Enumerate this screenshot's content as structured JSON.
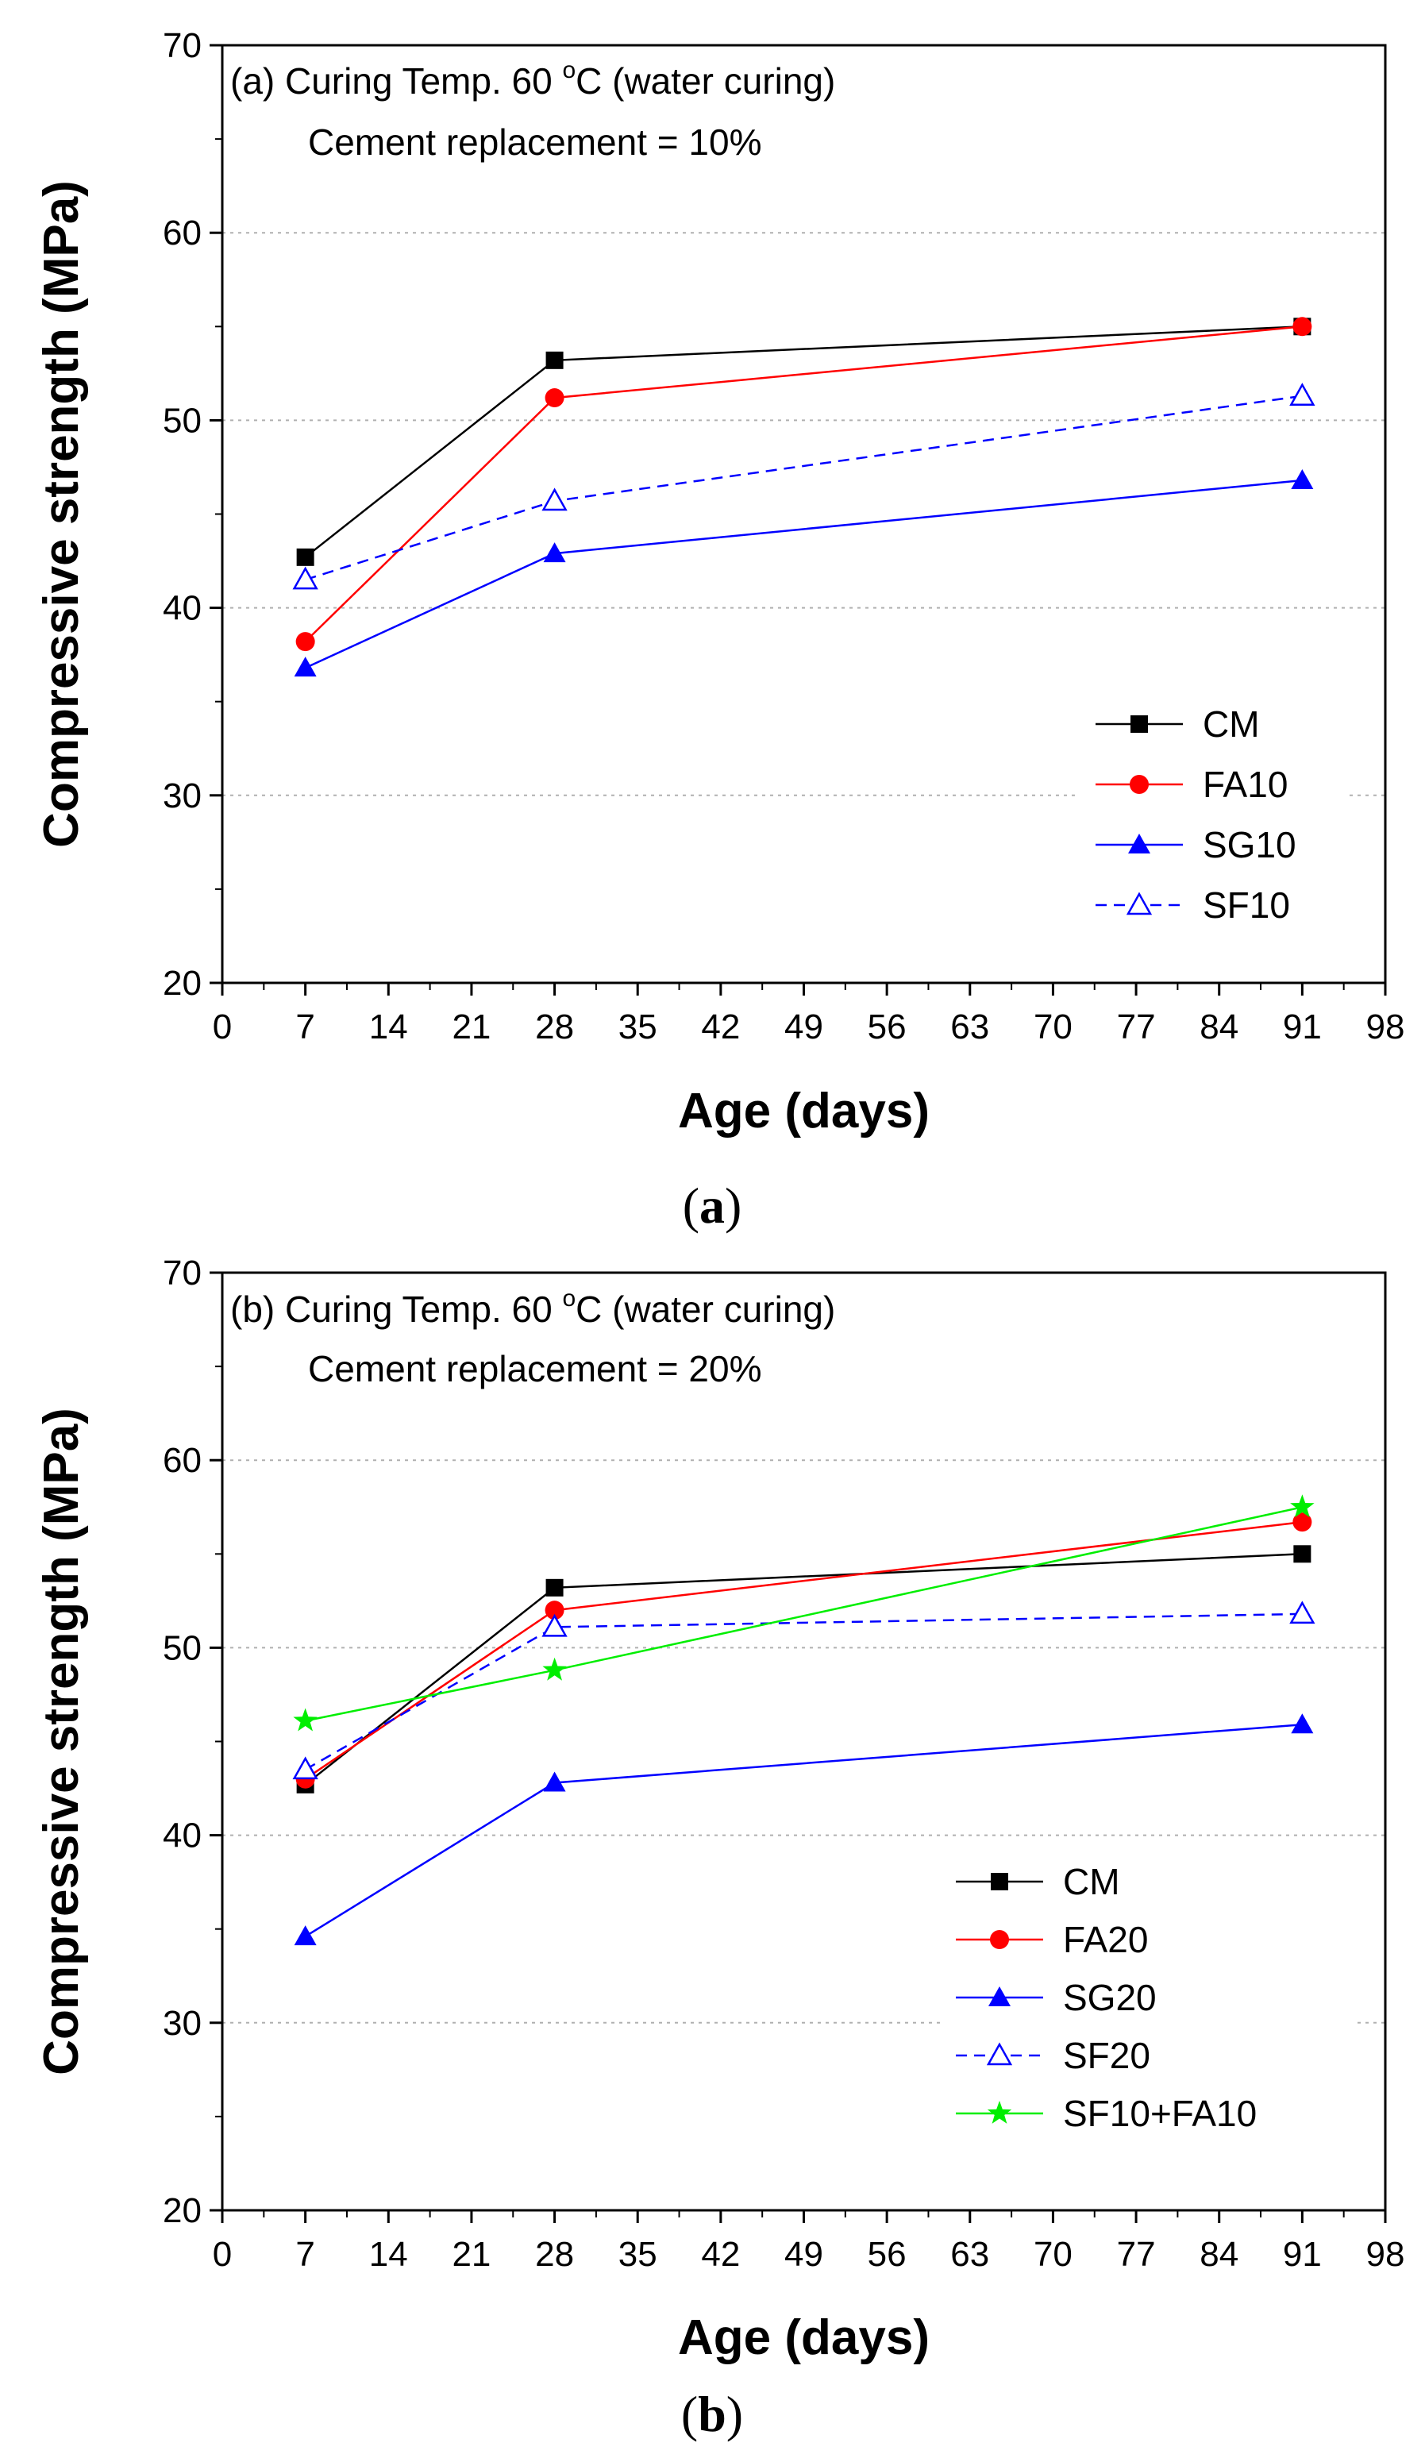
{
  "chart_data": [
    {
      "id": "a",
      "type": "line",
      "panel_label": "a",
      "annotation_prefix": "(a) Curing Temp. 60 ",
      "annotation_degree": "o",
      "annotation_suffix": "C (water curing)",
      "annotation_line2": "Cement replacement = 10%",
      "xlabel": "Age (days)",
      "ylabel": "Compressive strength (MPa)",
      "xlim": [
        0,
        98
      ],
      "ylim": [
        20,
        70
      ],
      "xticks": [
        0,
        7,
        14,
        21,
        28,
        35,
        42,
        49,
        56,
        63,
        70,
        77,
        84,
        91,
        98
      ],
      "yticks": [
        20,
        30,
        40,
        50,
        60,
        70
      ],
      "x": [
        7,
        28,
        91
      ],
      "legend_position": "bottom-right",
      "series": [
        {
          "name": "CM",
          "values": [
            42.7,
            53.2,
            55.0
          ],
          "color": "#000000",
          "marker": "square",
          "dash": "solid"
        },
        {
          "name": "FA10",
          "values": [
            38.2,
            51.2,
            55.0
          ],
          "color": "#ff0000",
          "marker": "circle",
          "dash": "solid"
        },
        {
          "name": "SG10",
          "values": [
            36.8,
            42.9,
            46.8
          ],
          "color": "#0000ff",
          "marker": "triangle",
          "dash": "solid"
        },
        {
          "name": "SF10",
          "values": [
            41.5,
            45.7,
            51.3
          ],
          "color": "#0000ff",
          "marker": "triangle-open",
          "dash": "dashed"
        }
      ]
    },
    {
      "id": "b",
      "type": "line",
      "panel_label": "b",
      "annotation_prefix": "(b) Curing Temp. 60 ",
      "annotation_degree": "o",
      "annotation_suffix": "C (water curing)",
      "annotation_line2": "Cement replacement = 20%",
      "xlabel": "Age (days)",
      "ylabel": "Compressive strength (MPa)",
      "xlim": [
        0,
        98
      ],
      "ylim": [
        20,
        70
      ],
      "xticks": [
        0,
        7,
        14,
        21,
        28,
        35,
        42,
        49,
        56,
        63,
        70,
        77,
        84,
        91,
        98
      ],
      "yticks": [
        20,
        30,
        40,
        50,
        60,
        70
      ],
      "x": [
        7,
        28,
        91
      ],
      "legend_position": "bottom-right",
      "series": [
        {
          "name": "CM",
          "values": [
            42.7,
            53.2,
            55.0
          ],
          "color": "#000000",
          "marker": "square",
          "dash": "solid"
        },
        {
          "name": "FA20",
          "values": [
            43.0,
            52.0,
            56.7
          ],
          "color": "#ff0000",
          "marker": "circle",
          "dash": "solid"
        },
        {
          "name": "SG20",
          "values": [
            34.6,
            42.8,
            45.9
          ],
          "color": "#0000ff",
          "marker": "triangle",
          "dash": "solid"
        },
        {
          "name": "SF20",
          "values": [
            43.5,
            51.1,
            51.8
          ],
          "color": "#0000ff",
          "marker": "triangle-open",
          "dash": "dashed"
        },
        {
          "name": "SF10+FA10",
          "values": [
            46.1,
            48.8,
            57.5
          ],
          "color": "#00ee00",
          "marker": "star",
          "dash": "solid"
        }
      ]
    }
  ]
}
